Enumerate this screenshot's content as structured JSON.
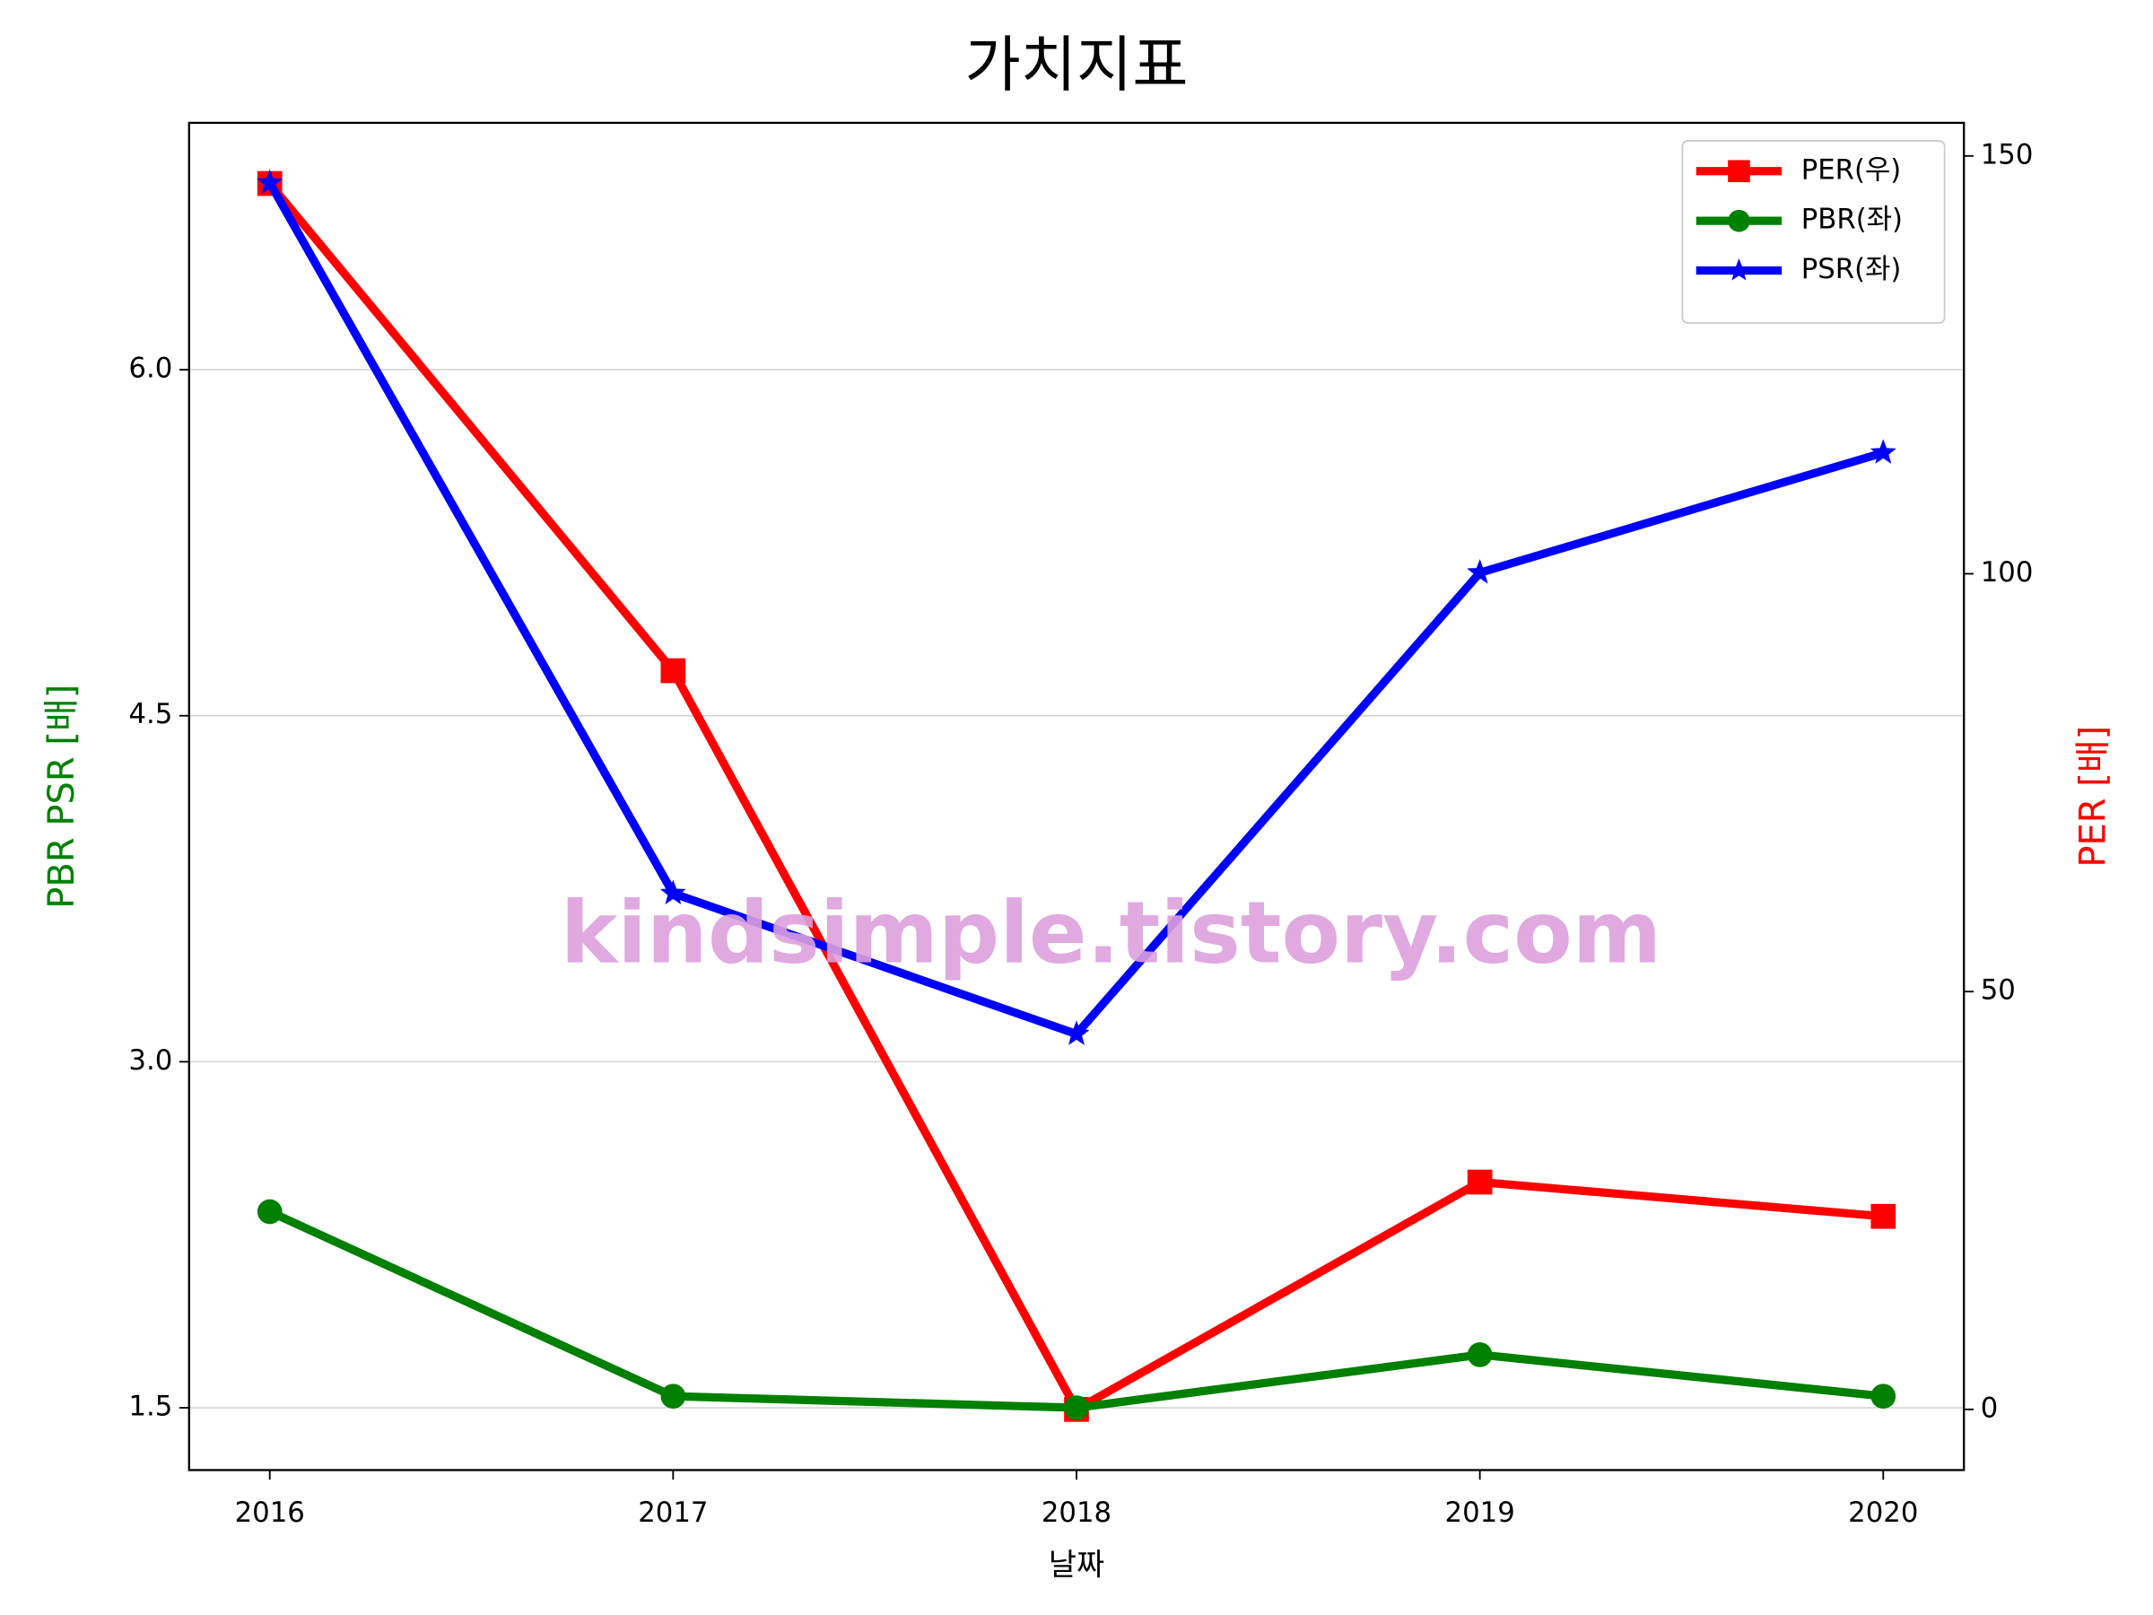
{
  "chart_data": {
    "type": "line",
    "title": "가치지표",
    "x_label": "날짜",
    "y_label": "PBR PSR [배]",
    "y2_label": "PER [배]",
    "watermark": "kindsimple.tistory.com",
    "categories": [
      "2016",
      "2017",
      "2018",
      "2019",
      "2020"
    ],
    "series": [
      {
        "name": "PER(우)",
        "color": "#ff0000",
        "marker": "square",
        "axis": "y2",
        "values": [
          146.7,
          88.4,
          0,
          27.2,
          23.1
        ]
      },
      {
        "name": "PBR(좌)",
        "color": "#008000",
        "marker": "circle",
        "values": [
          2.35,
          1.55,
          1.5,
          1.73,
          1.55
        ]
      },
      {
        "name": "PSR(좌)",
        "color": "#0000ff",
        "marker": "star",
        "values": [
          6.81,
          3.73,
          3.12,
          5.12,
          5.64
        ]
      }
    ],
    "ylim": [
      1.23,
      7.07
    ],
    "yticks": [
      1.5,
      {
        "value": 3,
        "label": "3.0"
      },
      4.5,
      {
        "value": 6,
        "label": "6.0"
      }
    ],
    "y2lim": [
      -7.26,
      153.96
    ],
    "y2ticks": [
      0,
      50,
      100,
      150
    ],
    "grid": true,
    "legend": "upper right"
  }
}
